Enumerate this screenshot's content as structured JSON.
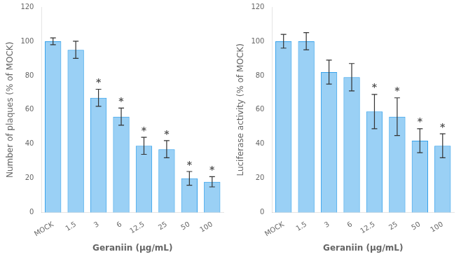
{
  "chart_data": [
    {
      "type": "bar",
      "xlabel": "Geraniin (μg/mL)",
      "ylabel": "Number of plaques (% of MOCK)",
      "categories": [
        "MOCK",
        "1.5",
        "3",
        "6",
        "12.5",
        "25",
        "50",
        "100"
      ],
      "values": [
        100,
        95,
        67,
        56,
        39,
        37,
        20,
        18
      ],
      "errors": [
        2,
        5,
        5,
        5,
        5,
        5,
        4,
        3
      ],
      "annotations": [
        {
          "category": "3",
          "text": "*"
        },
        {
          "category": "6",
          "text": "*"
        },
        {
          "category": "12.5",
          "text": "*"
        },
        {
          "category": "25",
          "text": "*"
        },
        {
          "category": "50",
          "text": "*"
        },
        {
          "category": "100",
          "text": "*"
        }
      ],
      "ylim": [
        0,
        120
      ],
      "yticks": [
        0,
        20,
        40,
        60,
        80,
        100,
        120
      ],
      "grid": false
    },
    {
      "type": "bar",
      "xlabel": "Geraniin (μg/mL)",
      "ylabel": "Luciferase activity (% of MOCK)",
      "categories": [
        "MOCK",
        "1.5",
        "3",
        "6",
        "12.5",
        "25",
        "50",
        "100"
      ],
      "values": [
        100,
        100,
        82,
        79,
        59,
        56,
        42,
        39
      ],
      "errors": [
        4,
        5,
        7,
        8,
        10,
        11,
        7,
        7
      ],
      "annotations": [
        {
          "category": "12.5",
          "text": "*"
        },
        {
          "category": "25",
          "text": "*"
        },
        {
          "category": "50",
          "text": "*"
        },
        {
          "category": "100",
          "text": "*"
        }
      ],
      "ylim": [
        0,
        120
      ],
      "yticks": [
        0,
        20,
        40,
        60,
        80,
        100,
        120
      ],
      "grid": false
    }
  ]
}
